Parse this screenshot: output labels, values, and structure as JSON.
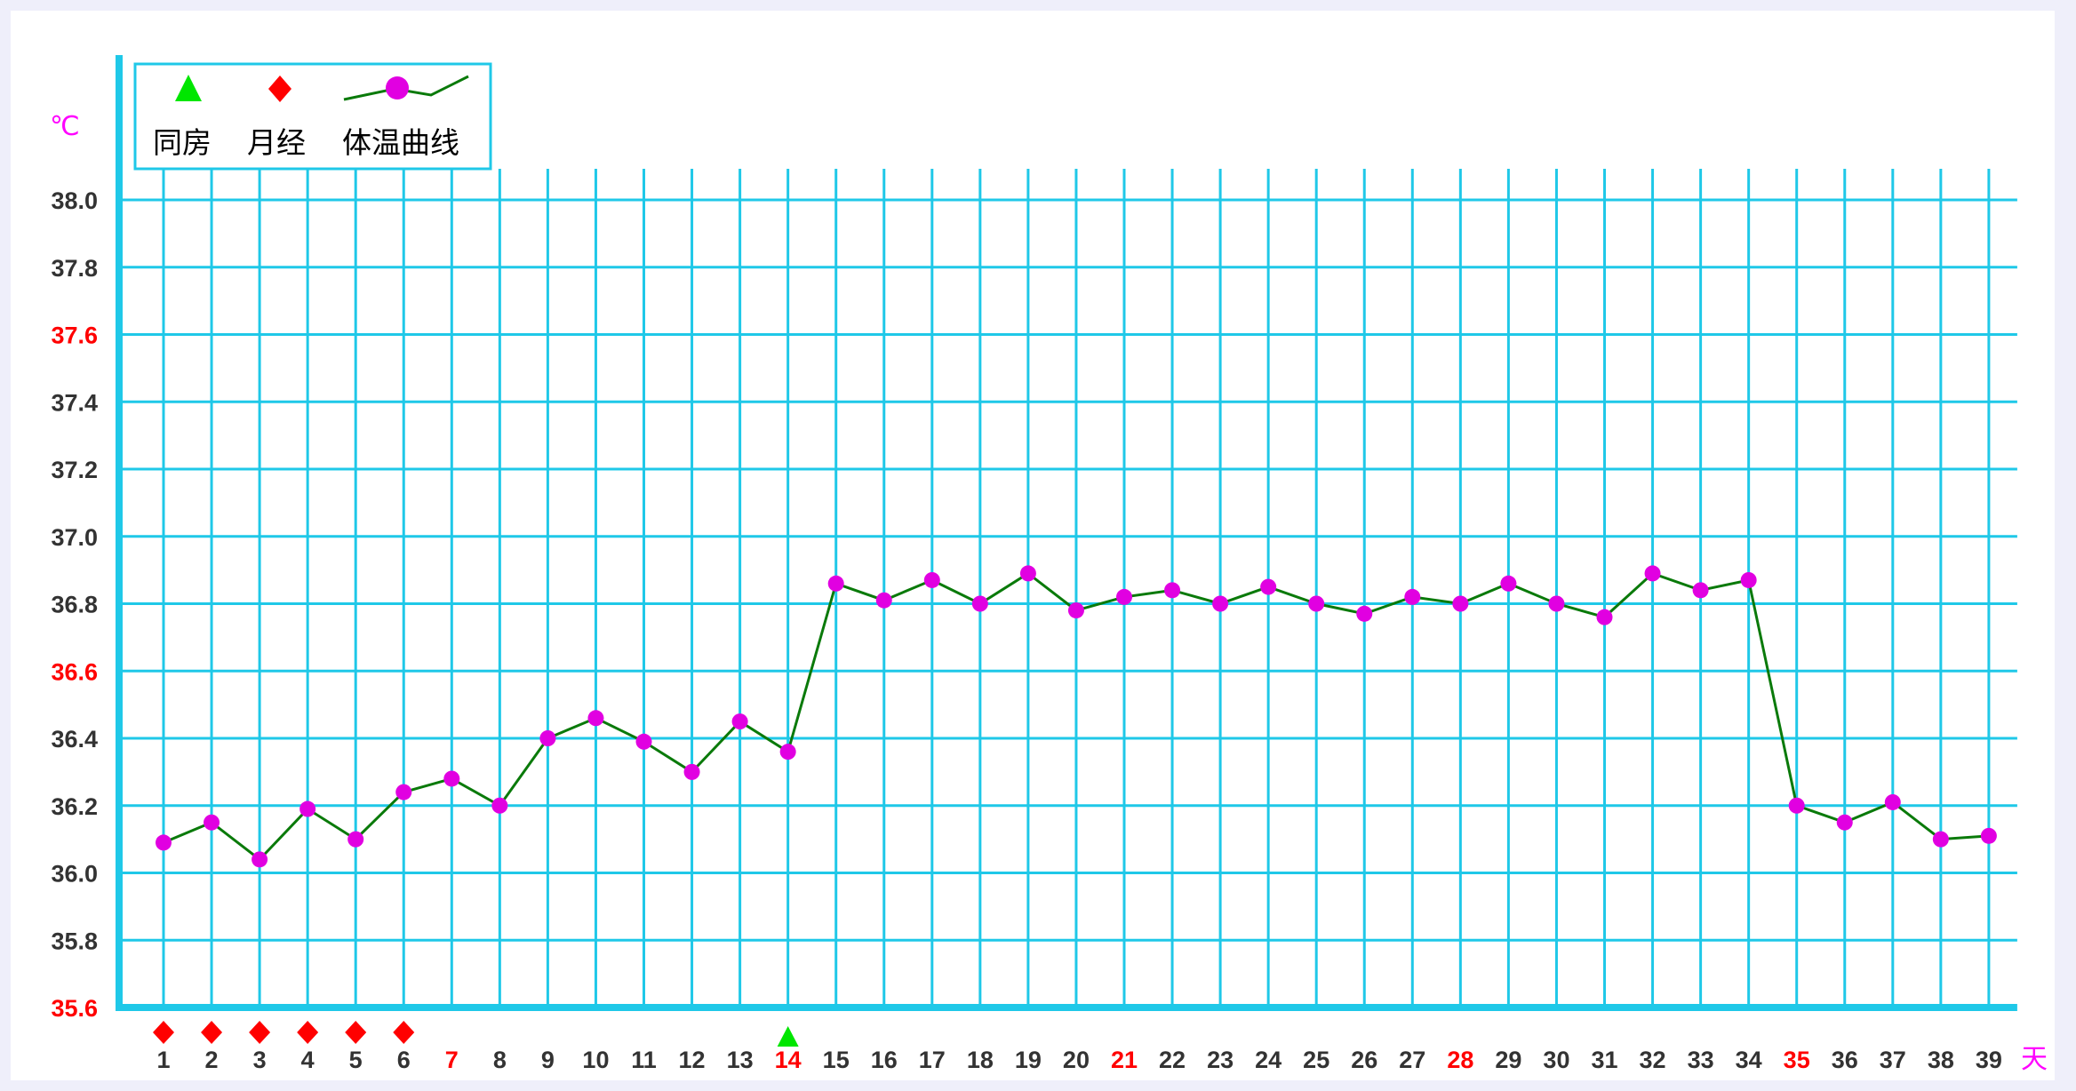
{
  "chart_data": {
    "type": "line",
    "y_unit": "℃",
    "x_unit": "天",
    "ylim": [
      35.6,
      38.0
    ],
    "yticks": [
      "38.0",
      "37.8",
      "37.6",
      "37.4",
      "37.2",
      "37.0",
      "36.8",
      "36.6",
      "36.4",
      "36.2",
      "36.0",
      "35.8",
      "35.6"
    ],
    "yticks_red": [
      "37.6",
      "36.6",
      "35.6"
    ],
    "x": [
      1,
      2,
      3,
      4,
      5,
      6,
      7,
      8,
      9,
      10,
      11,
      12,
      13,
      14,
      15,
      16,
      17,
      18,
      19,
      20,
      21,
      22,
      23,
      24,
      25,
      26,
      27,
      28,
      29,
      30,
      31,
      32,
      33,
      34,
      35,
      36,
      37,
      38,
      39
    ],
    "xticks_red": [
      7,
      14,
      21,
      28,
      35
    ],
    "series": [
      {
        "name": "体温曲线",
        "values": [
          36.09,
          36.15,
          36.04,
          36.19,
          36.1,
          36.24,
          36.28,
          36.2,
          36.4,
          36.46,
          36.39,
          36.3,
          36.45,
          36.36,
          36.86,
          36.81,
          36.87,
          36.8,
          36.89,
          36.78,
          36.82,
          36.84,
          36.8,
          36.85,
          36.8,
          36.77,
          36.82,
          36.8,
          36.86,
          36.8,
          36.76,
          36.89,
          36.84,
          36.87,
          36.2,
          36.15,
          36.21,
          36.1,
          36.11
        ]
      }
    ],
    "markers": {
      "intercourse_days": [
        14
      ],
      "menstruation_days": [
        1,
        2,
        3,
        4,
        5,
        6
      ]
    },
    "colors": {
      "grid": "#1fc8e8",
      "line": "#0a7a0a",
      "point": "#e100e1",
      "intercourse": "#00e600",
      "menstruation": "#ff0000",
      "red_label": "#ff0000",
      "label": "#333333"
    },
    "legend": {
      "position": "top-left",
      "items": [
        {
          "label": "同房",
          "icon": "green-triangle-icon"
        },
        {
          "label": "月经",
          "icon": "red-diamond-icon"
        },
        {
          "label": "体温曲线",
          "icon": "line-with-dot-icon"
        }
      ]
    },
    "grid": true
  }
}
